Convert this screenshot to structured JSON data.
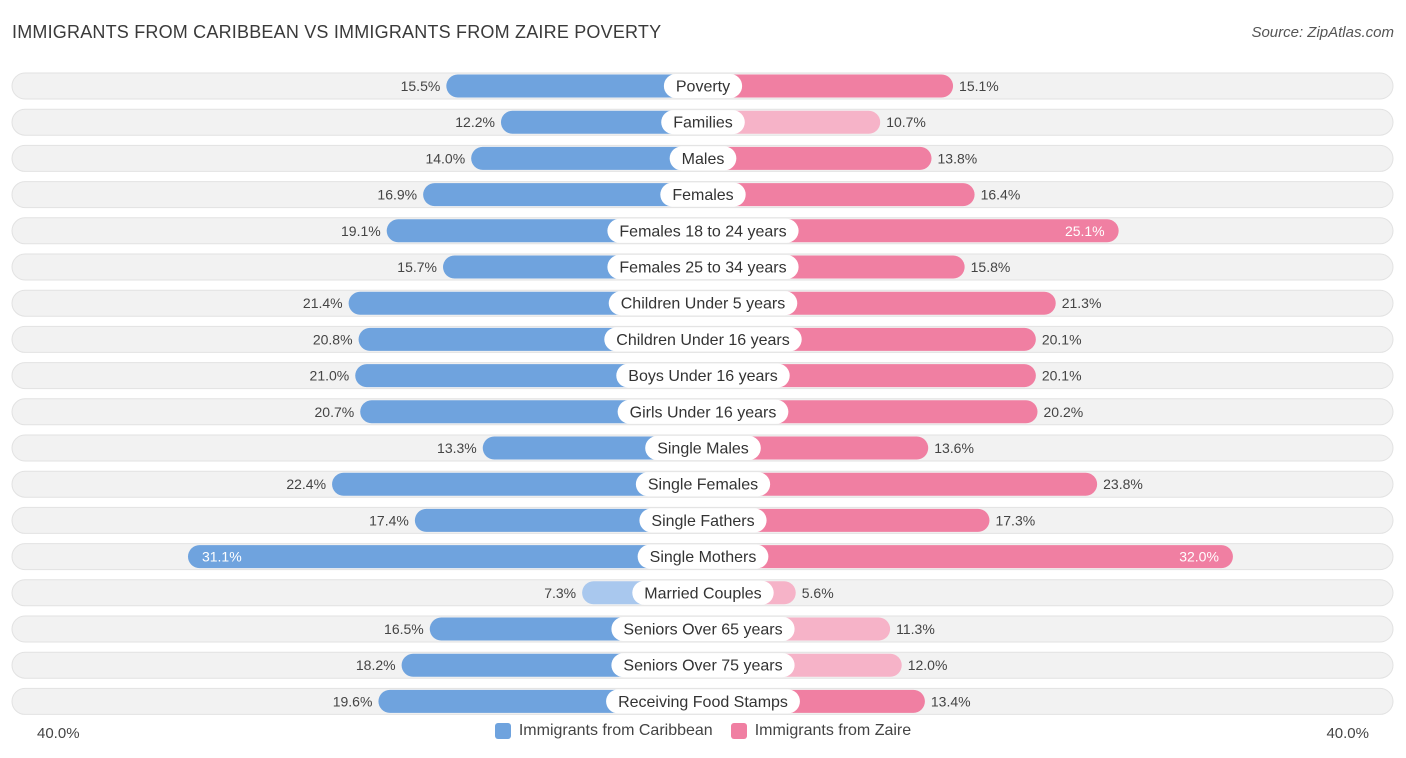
{
  "title": "IMMIGRANTS FROM CARIBBEAN VS IMMIGRANTS FROM ZAIRE POVERTY",
  "source": "Source: ZipAtlas.com",
  "colors": {
    "caribbean": "#6fa3de",
    "caribbean_light": "#a9c8ee",
    "zaire": "#f07fa2",
    "zaire_light": "#f6b3c8"
  },
  "chart_data": {
    "type": "bar",
    "orientation": "horizontal-diverging",
    "axis_max": 40.0,
    "axis_left_label": "40.0%",
    "axis_right_label": "40.0%",
    "categories": [
      "Poverty",
      "Families",
      "Males",
      "Females",
      "Females 18 to 24 years",
      "Females 25 to 34 years",
      "Children Under 5 years",
      "Children Under 16 years",
      "Boys Under 16 years",
      "Girls Under 16 years",
      "Single Males",
      "Single Females",
      "Single Fathers",
      "Single Mothers",
      "Married Couples",
      "Seniors Over 65 years",
      "Seniors Over 75 years",
      "Receiving Food Stamps"
    ],
    "series": [
      {
        "name": "Immigrants from Caribbean",
        "values": [
          15.5,
          12.2,
          14.0,
          16.9,
          19.1,
          15.7,
          21.4,
          20.8,
          21.0,
          20.7,
          13.3,
          22.4,
          17.4,
          31.1,
          7.3,
          16.5,
          18.2,
          19.6
        ],
        "labels": [
          "15.5%",
          "12.2%",
          "14.0%",
          "16.9%",
          "19.1%",
          "15.7%",
          "21.4%",
          "20.8%",
          "21.0%",
          "20.7%",
          "13.3%",
          "22.4%",
          "17.4%",
          "31.1%",
          "7.3%",
          "16.5%",
          "18.2%",
          "19.6%"
        ]
      },
      {
        "name": "Immigrants from Zaire",
        "values": [
          15.1,
          10.7,
          13.8,
          16.4,
          25.1,
          15.8,
          21.3,
          20.1,
          20.1,
          20.2,
          13.6,
          23.8,
          17.3,
          32.0,
          5.6,
          11.3,
          12.0,
          13.4
        ],
        "labels": [
          "15.1%",
          "10.7%",
          "13.8%",
          "16.4%",
          "25.1%",
          "15.8%",
          "21.3%",
          "20.1%",
          "20.1%",
          "20.2%",
          "13.6%",
          "23.8%",
          "17.3%",
          "32.0%",
          "5.6%",
          "11.3%",
          "12.0%",
          "13.4%"
        ]
      }
    ]
  },
  "legend": {
    "caribbean": "Immigrants from Caribbean",
    "zaire": "Immigrants from Zaire"
  }
}
